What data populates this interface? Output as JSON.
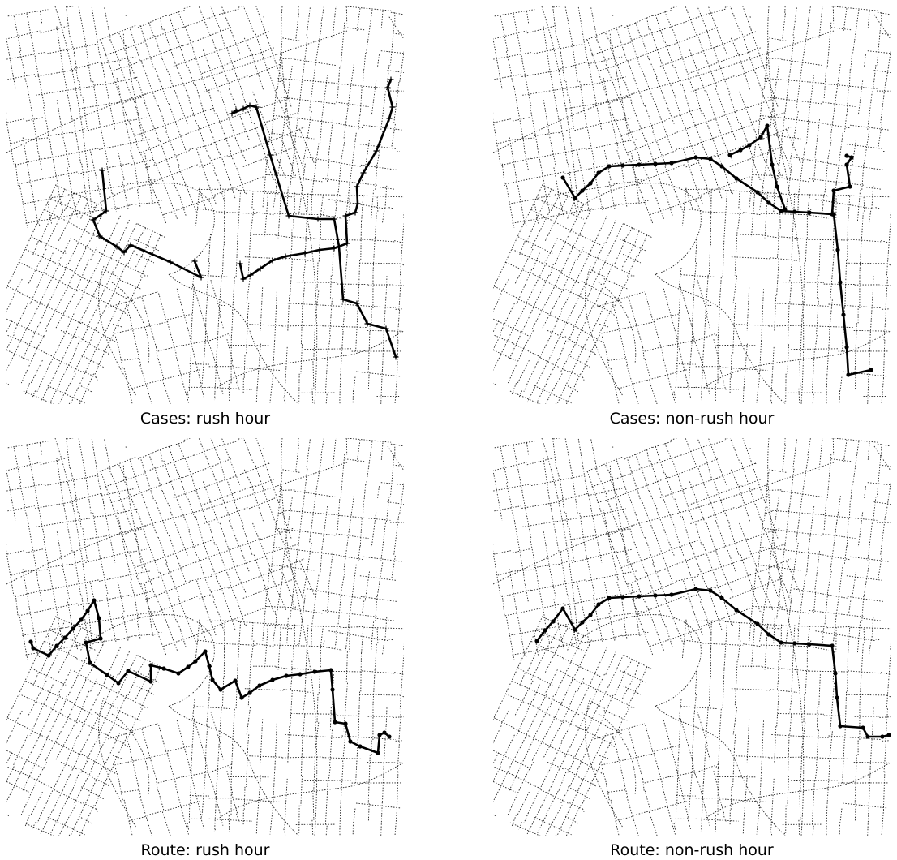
{
  "figure": {
    "panels": [
      {
        "id": "cases-rush",
        "caption": "Cases: rush hour",
        "route_kind": "cases",
        "marker": "cross"
      },
      {
        "id": "cases-non-rush",
        "caption": "Cases: non-rush hour",
        "route_kind": "cases",
        "marker": "dot"
      },
      {
        "id": "route-rush",
        "caption": "Route: rush hour",
        "route_kind": "route",
        "marker": "dot"
      },
      {
        "id": "route-non-rush",
        "caption": "Route: non-rush hour",
        "route_kind": "route",
        "marker": "dot"
      }
    ],
    "colors": {
      "background": "#ffffff",
      "streets": "#222222",
      "routes": "#000000"
    }
  }
}
